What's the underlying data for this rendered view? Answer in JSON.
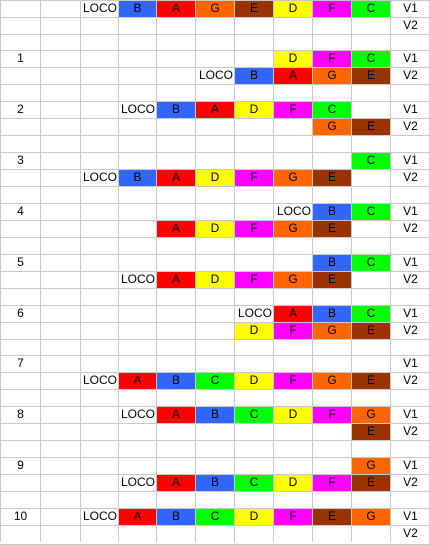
{
  "colors": {
    "A": "#ff0000",
    "B": "#3366ff",
    "C": "#00ff00",
    "D": "#ffff00",
    "E": "#993300",
    "F": "#ff00ff",
    "G": "#ff6600",
    "cell_bg": "#ffffff",
    "grid": "#c8c8c8"
  },
  "rows": [
    [
      "",
      "",
      "LOCO",
      "B",
      "A",
      "G",
      "E",
      "D",
      "F",
      "C",
      "V1"
    ],
    [
      "",
      "",
      "",
      "",
      "",
      "",
      "",
      "",
      "",
      "",
      "V2"
    ],
    [
      "",
      "",
      "",
      "",
      "",
      "",
      "",
      "",
      "",
      "",
      ""
    ],
    [
      "1",
      "",
      "",
      "",
      "",
      "",
      "",
      "D",
      "F",
      "C",
      "V1"
    ],
    [
      "",
      "",
      "",
      "",
      "",
      "LOCO",
      "B",
      "A",
      "G",
      "E",
      "V2"
    ],
    [
      "",
      "",
      "",
      "",
      "",
      "",
      "",
      "",
      "",
      "",
      ""
    ],
    [
      "2",
      "",
      "",
      "LOCO",
      "B",
      "A",
      "D",
      "F",
      "C",
      "",
      "V1"
    ],
    [
      "",
      "",
      "",
      "",
      "",
      "",
      "",
      "",
      "G",
      "E",
      "V2"
    ],
    [
      "",
      "",
      "",
      "",
      "",
      "",
      "",
      "",
      "",
      "",
      ""
    ],
    [
      "3",
      "",
      "",
      "",
      "",
      "",
      "",
      "",
      "",
      "C",
      "V1"
    ],
    [
      "",
      "",
      "LOCO",
      "B",
      "A",
      "D",
      "F",
      "G",
      "E",
      "",
      "V2"
    ],
    [
      "",
      "",
      "",
      "",
      "",
      "",
      "",
      "",
      "",
      "",
      ""
    ],
    [
      "4",
      "",
      "",
      "",
      "",
      "",
      "",
      "LOCO",
      "B",
      "C",
      "V1"
    ],
    [
      "",
      "",
      "",
      "",
      "A",
      "D",
      "F",
      "G",
      "E",
      "",
      "V2"
    ],
    [
      "",
      "",
      "",
      "",
      "",
      "",
      "",
      "",
      "",
      "",
      ""
    ],
    [
      "5",
      "",
      "",
      "",
      "",
      "",
      "",
      "",
      "B",
      "C",
      "V1"
    ],
    [
      "",
      "",
      "",
      "LOCO",
      "A",
      "D",
      "F",
      "G",
      "E",
      "",
      "V2"
    ],
    [
      "",
      "",
      "",
      "",
      "",
      "",
      "",
      "",
      "",
      "",
      ""
    ],
    [
      "6",
      "",
      "",
      "",
      "",
      "",
      "LOCO",
      "A",
      "B",
      "C",
      "V1"
    ],
    [
      "",
      "",
      "",
      "",
      "",
      "",
      "D",
      "F",
      "G",
      "E",
      "V2"
    ],
    [
      "",
      "",
      "",
      "",
      "",
      "",
      "",
      "",
      "",
      "",
      ""
    ],
    [
      "7",
      "",
      "",
      "",
      "",
      "",
      "",
      "",
      "",
      "",
      "V1"
    ],
    [
      "",
      "",
      "LOCO",
      "A",
      "B",
      "C",
      "D",
      "F",
      "G",
      "E",
      "V2"
    ],
    [
      "",
      "",
      "",
      "",
      "",
      "",
      "",
      "",
      "",
      "",
      ""
    ],
    [
      "8",
      "",
      "",
      "LOCO",
      "A",
      "B",
      "C",
      "D",
      "F",
      "G",
      "V1"
    ],
    [
      "",
      "",
      "",
      "",
      "",
      "",
      "",
      "",
      "",
      "E",
      "V2"
    ],
    [
      "",
      "",
      "",
      "",
      "",
      "",
      "",
      "",
      "",
      "",
      ""
    ],
    [
      "9",
      "",
      "",
      "",
      "",
      "",
      "",
      "",
      "",
      "G",
      "V1"
    ],
    [
      "",
      "",
      "",
      "LOCO",
      "A",
      "B",
      "C",
      "D",
      "F",
      "E",
      "V2"
    ],
    [
      "",
      "",
      "",
      "",
      "",
      "",
      "",
      "",
      "",
      "",
      ""
    ],
    [
      "10",
      "",
      "LOCO",
      "A",
      "B",
      "C",
      "D",
      "F",
      "E",
      "G",
      "V1"
    ],
    [
      "",
      "",
      "",
      "",
      "",
      "",
      "",
      "",
      "",
      "",
      "V2"
    ]
  ]
}
